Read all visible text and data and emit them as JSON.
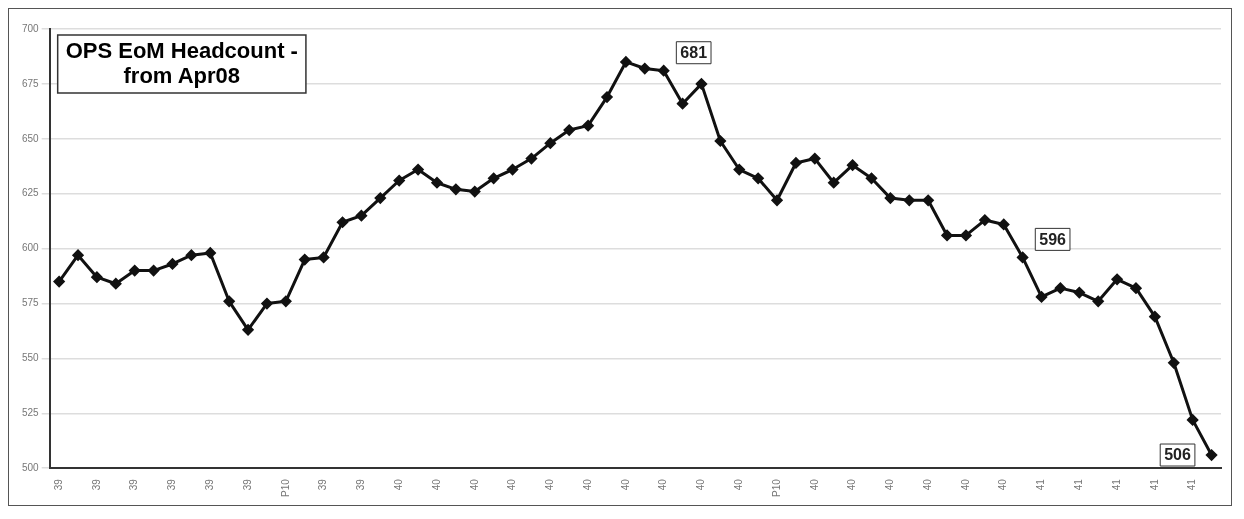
{
  "chart_data": {
    "type": "line",
    "title": "OPS EoM Headcount -\nfrom Apr08",
    "categories": [
      "39",
      null,
      "39",
      null,
      "39",
      null,
      "39",
      null,
      "39",
      null,
      "39",
      null,
      "P10",
      null,
      "39",
      null,
      "39",
      null,
      "40",
      null,
      "40",
      null,
      "40",
      null,
      "40",
      null,
      "40",
      null,
      "40",
      null,
      "40",
      null,
      "40",
      null,
      "40",
      null,
      "40",
      null,
      "P10",
      null,
      "40",
      null,
      "40",
      null,
      "40",
      null,
      "40",
      null,
      "40",
      null,
      "40",
      null,
      "41",
      null,
      "41",
      null,
      "41",
      null,
      "41",
      null,
      "41",
      null
    ],
    "series": [
      {
        "color": "#111111",
        "values": [
          585,
          597,
          587,
          584,
          590,
          590,
          593,
          597,
          598,
          576,
          563,
          575,
          576,
          595,
          596,
          612,
          615,
          623,
          631,
          636,
          630,
          627,
          626,
          632,
          636,
          641,
          648,
          654,
          656,
          669,
          685,
          682,
          681,
          666,
          675,
          649,
          636,
          632,
          622,
          639,
          641,
          630,
          638,
          632,
          623,
          622,
          622,
          606,
          606,
          613,
          611,
          596,
          578,
          582,
          580,
          576,
          586,
          582,
          569,
          548,
          522,
          506
        ],
        "value_labels": [
          null,
          null,
          null,
          null,
          null,
          null,
          null,
          null,
          null,
          null,
          null,
          null,
          null,
          null,
          null,
          null,
          null,
          null,
          null,
          null,
          null,
          null,
          null,
          null,
          null,
          null,
          null,
          null,
          null,
          null,
          null,
          null,
          "681",
          null,
          null,
          null,
          null,
          null,
          null,
          null,
          null,
          null,
          null,
          null,
          null,
          null,
          null,
          null,
          null,
          null,
          null,
          "596",
          null,
          null,
          null,
          null,
          null,
          null,
          null,
          null,
          null,
          "506"
        ]
      }
    ],
    "ylim": [
      500,
      700
    ],
    "yticks": [
      500,
      525,
      550,
      575,
      600,
      625,
      650,
      675,
      700
    ],
    "grid": "y",
    "marker": "diamond",
    "line_style": "solid",
    "legend": false
  }
}
